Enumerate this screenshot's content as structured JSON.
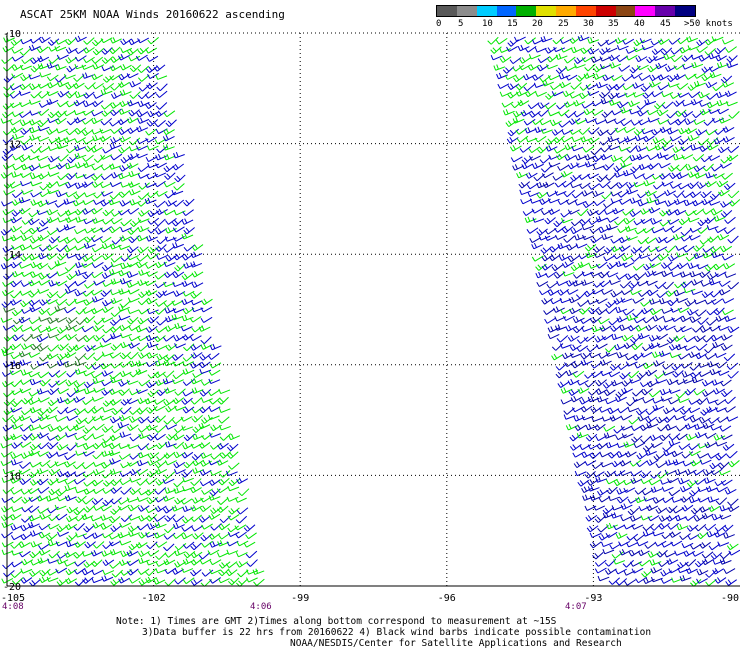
{
  "title": "ASCAT 25KM NOAA Winds 20160622 ascending",
  "scale": {
    "labels": [
      "0",
      "5",
      "10",
      "15",
      "20",
      "25",
      "30",
      "35",
      "40",
      "45",
      ">50 knots"
    ],
    "colors": [
      "#595959",
      "#8c8c8c",
      "#00ccff",
      "#0066ff",
      "#00b000",
      "#e0e000",
      "#ffaa00",
      "#ff4400",
      "#cc0000",
      "#8b4513",
      "#ff00ff",
      "#6600aa",
      "#000080"
    ]
  },
  "map": {
    "lat_labels": [
      "-10",
      "-12",
      "-14",
      "-16",
      "-18",
      "-20"
    ],
    "lon_labels": [
      "-105",
      "-102",
      "-99",
      "-96",
      "-93",
      "-90"
    ],
    "time_labels": [
      "4:08",
      "4:06",
      "4:07"
    ],
    "barb_colors": {
      "light": "#00e600",
      "moderate": "#0000cc",
      "dark": "#0000aa",
      "fresh": "#2a7a2a"
    }
  },
  "notes": {
    "line1": "Note: 1) Times are GMT 2)Times along bottom correspond to measurement at ~15S",
    "line2": "3)Data buffer is 22 hrs from 20160622 4) Black wind barbs indicate possible contamination",
    "line3": "NOAA/NESDIS/Center for Satellite Applications and Research"
  }
}
